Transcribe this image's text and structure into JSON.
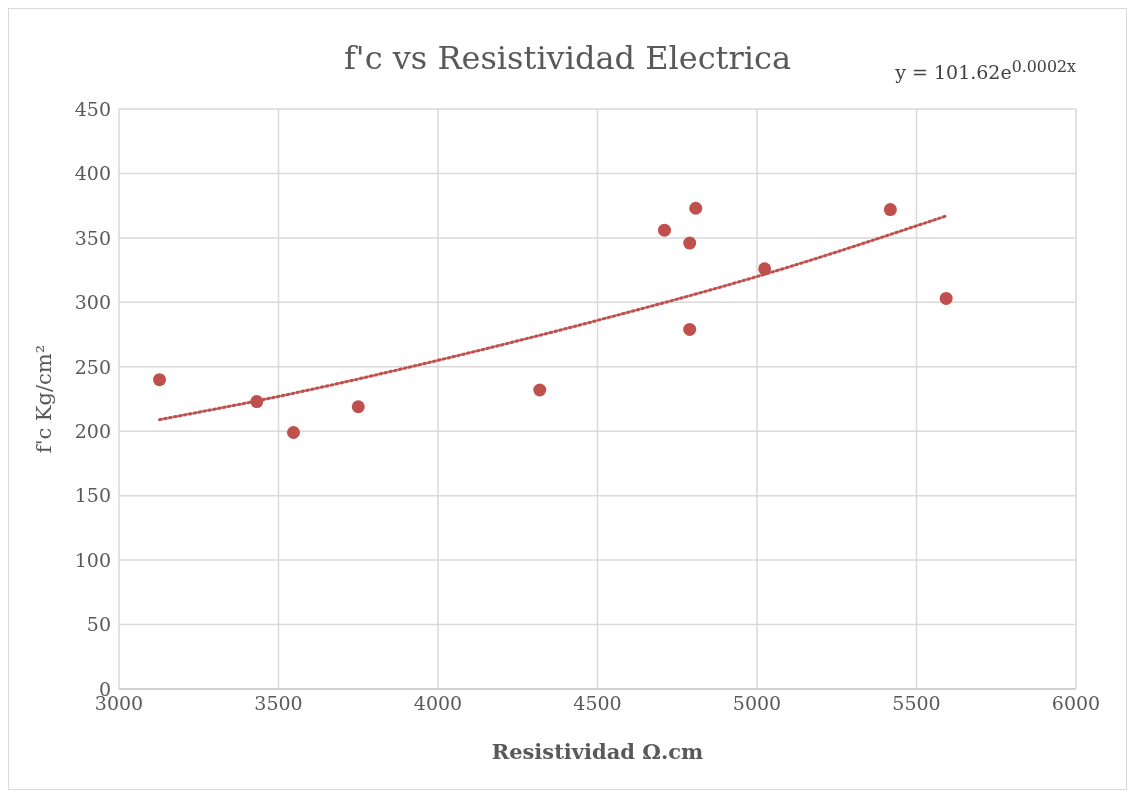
{
  "chart_data": {
    "type": "scatter",
    "title": "f'c vs Resistividad Electrica",
    "xlabel": "Resistividad Ω.cm",
    "ylabel": "f'c Kg/cm²",
    "annotations": [
      "y = 101.62e$^{0.0002x}$"
    ],
    "x": [
      3127,
      3432,
      3547,
      3750,
      4319,
      4710,
      4808,
      4789,
      4789,
      5024,
      5418,
      5593
    ],
    "series": [
      {
        "color": "#c0504d",
        "values": [
          240,
          223,
          199,
          219,
          232,
          356,
          373,
          346,
          279,
          326,
          372,
          303
        ]
      },
      {
        "type": "line",
        "color": "#c0504d",
        "line_style": "dotted",
        "marker": "none",
        "x": [
          3127,
          3500,
          4000,
          4500,
          5000,
          5593
        ],
        "values": [
          209,
          227,
          255,
          286,
          320,
          367
        ]
      }
    ],
    "marker": "circle",
    "grid": true,
    "legend": false,
    "xlim": [
      3000,
      6000
    ],
    "xticks": [
      3000,
      3500,
      4000,
      4500,
      5000,
      5500,
      6000
    ],
    "ylim": [
      0,
      450
    ],
    "yticks": [
      0,
      50,
      100,
      150,
      200,
      250,
      300,
      350,
      400,
      450
    ]
  }
}
